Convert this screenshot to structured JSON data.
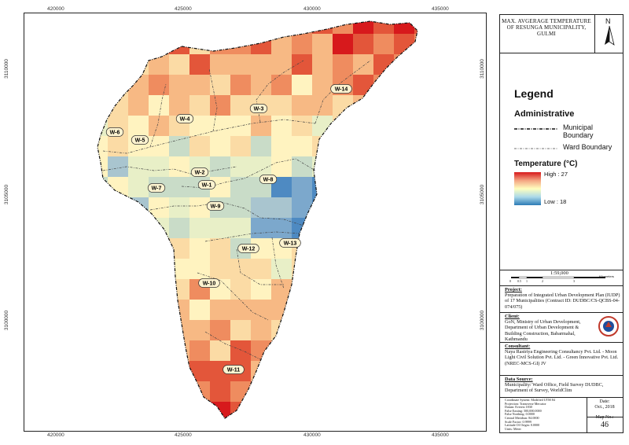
{
  "title": "MAX. AVGERAGE TEMPERATURE OF RESUNGA MUNICIPALITY, GULMI",
  "north_arrow": {
    "letter": "N",
    "icon": "north-arrow-icon"
  },
  "coordinates": {
    "x_labels": [
      "420000",
      "425000",
      "430000",
      "435000"
    ],
    "y_labels": [
      "3110000",
      "3105000",
      "3100000"
    ]
  },
  "legend": {
    "title": "Legend",
    "administrative_heading": "Administrative",
    "municipal_boundary": "Municipal Boundary",
    "ward_boundary": "Ward Boundary",
    "temperature_heading": "Temperature (°C)",
    "high_label": "High : 27",
    "low_label": "Low : 18",
    "colors": {
      "high": "#d7191c",
      "mid": "#ffffbf",
      "low": "#2c7bb6"
    }
  },
  "wards": [
    "W-1",
    "W-2",
    "W-3",
    "W-4",
    "W-5",
    "W-6",
    "W-7",
    "W-8",
    "W-9",
    "W-10",
    "W-11",
    "W-12",
    "W-13",
    "W-14"
  ],
  "scale": {
    "label": "1:59,000",
    "unit": "Kilometers",
    "ticks": [
      "0",
      "0.5",
      "1",
      "2",
      "3"
    ]
  },
  "project": {
    "heading": "Project:",
    "text": "Preparation of Integrated Urban Development Plan (IUDP) of 17 Municipalities (Contract ID: DUDBC/CS-QCBS-04-074/075)"
  },
  "client": {
    "heading": "Client:",
    "text": "GoN, Ministry of Urban Development, Department of Urban Development & Building Construction, Babarmahal, Kathmandu"
  },
  "consultant": {
    "heading": "Consultant:",
    "text": "Naya Rastriya Engineering Consultancy Pvt. Ltd. - Moon Light Civil Solution Pvt. Ltd. - Green Innovative Pvt. Ltd. (NREC-MCS-GI) JV"
  },
  "data_source": {
    "heading": "Data Source:",
    "text": "Municipality/ Ward Office, Field Survey DUDBC, Department of Survey, WorldClim"
  },
  "projection": [
    "Coordinate System: Modified UTM 84",
    "Projection: Transverse Mercator",
    "Datum: Everest 1830",
    "False Easting: 500,000.0000",
    "False Northing: 0.0000",
    "Central Meridian: 84.0000",
    "Scale Factor: 0.9999",
    "Latitude Of Origin: 0.0000",
    "Units: Meter"
  ],
  "date": {
    "label": "Date:",
    "value": "Oct., 2018"
  },
  "map_no": {
    "label": "Map No.:",
    "value": "46"
  }
}
